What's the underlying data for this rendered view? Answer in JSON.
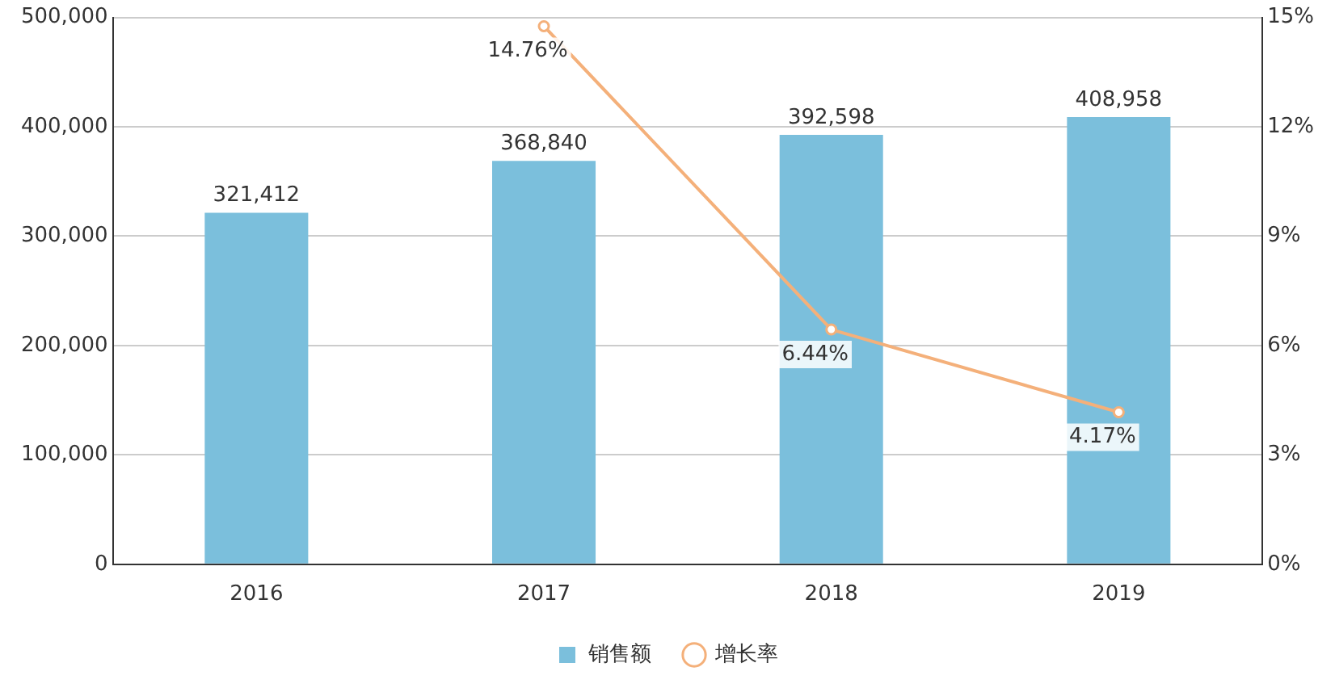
{
  "chart_data": {
    "type": "bar",
    "categories": [
      "2016",
      "2017",
      "2018",
      "2019"
    ],
    "series": [
      {
        "name": "销售额",
        "color": "#7bbfdc",
        "values": [
          321412,
          368840,
          392598,
          408958
        ],
        "value_labels": [
          "321,412",
          "368,840",
          "392,598",
          "408,958"
        ]
      },
      {
        "name": "增长率",
        "type": "line",
        "axis": "y2",
        "color": "#f4b07a",
        "values": [
          null,
          14.76,
          6.44,
          4.17
        ],
        "value_labels": [
          null,
          "14.76%",
          "6.44%",
          "4.17%"
        ],
        "marker": "circle"
      }
    ],
    "ylim": [
      0,
      500000
    ],
    "yticks": [
      0,
      {
        "value": 100000,
        "label": "100,000"
      },
      {
        "value": 200000,
        "label": "200,000"
      },
      {
        "value": 300000,
        "label": "300,000"
      },
      {
        "value": 400000,
        "label": "400,000"
      },
      {
        "value": 500000,
        "label": "500,000"
      }
    ],
    "y2lim": [
      0,
      15
    ],
    "y2ticks": [
      {
        "value": 0,
        "label": "0%"
      },
      {
        "value": 3,
        "label": "3%"
      },
      {
        "value": 6,
        "label": "6%"
      },
      {
        "value": 9,
        "label": "9%"
      },
      {
        "value": 12,
        "label": "12%"
      },
      {
        "value": 15,
        "label": "15%"
      }
    ],
    "grid": "y",
    "legend": "bottom"
  }
}
